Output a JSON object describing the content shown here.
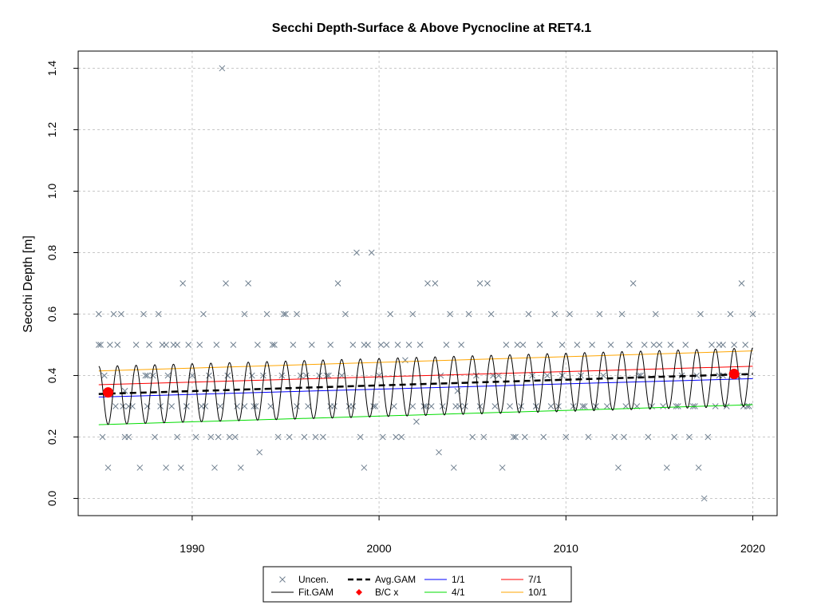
{
  "chart_data": {
    "type": "scatter",
    "title": "Secchi Depth-Surface & Above Pycnocline at RET4.1",
    "xlabel": "",
    "ylabel": "Secchi Depth [m]",
    "xlim": [
      1983.9,
      2021.3
    ],
    "ylim": [
      -0.056,
      1.456
    ],
    "x_ticks": [
      1990,
      2000,
      2010,
      2020
    ],
    "y_ticks": [
      0.0,
      0.2,
      0.4,
      0.6,
      0.8,
      1.0,
      1.2,
      1.4
    ],
    "grid": true,
    "legend_position": "bottom",
    "legend": [
      {
        "label": "Uncen.",
        "kind": "x-marker",
        "color": "#708090"
      },
      {
        "label": "Fit.GAM",
        "kind": "line",
        "color": "#000000"
      },
      {
        "label": "Avg.GAM",
        "kind": "dashed-line",
        "color": "#000000"
      },
      {
        "label": "B/C x",
        "kind": "diamond-marker",
        "color": "#ff0000"
      },
      {
        "label": "1/1",
        "kind": "line",
        "color": "#0000ff"
      },
      {
        "label": "4/1",
        "kind": "line",
        "color": "#00dd00"
      },
      {
        "label": "7/1",
        "kind": "line",
        "color": "#ff0000"
      },
      {
        "label": "10/1",
        "kind": "line",
        "color": "#ffa500"
      }
    ],
    "seasonal_lines": [
      {
        "name": "1/1",
        "color": "#0000ff",
        "x": [
          1985.0,
          2020.0
        ],
        "y": [
          0.33,
          0.39
        ]
      },
      {
        "name": "4/1",
        "color": "#00dd00",
        "x": [
          1985.0,
          2020.0
        ],
        "y": [
          0.24,
          0.305
        ]
      },
      {
        "name": "7/1",
        "color": "#ff0000",
        "x": [
          1985.0,
          2020.0
        ],
        "y": [
          0.37,
          0.43
        ]
      },
      {
        "name": "10/1",
        "color": "#ffa500",
        "x": [
          1985.0,
          2020.0
        ],
        "y": [
          0.415,
          0.48
        ]
      }
    ],
    "avg_gam": {
      "name": "Avg.GAM",
      "x": [
        1985.0,
        2020.0
      ],
      "y": [
        0.34,
        0.405
      ]
    },
    "fit_gam": {
      "name": "Fit.GAM",
      "x_start": 1985.0,
      "x_end": 2020.0,
      "period_years": 1.0,
      "mean_start": 0.335,
      "mean_end": 0.395,
      "amplitude": 0.095
    },
    "bc_points": {
      "name": "B/C x",
      "color": "#ff0000",
      "x": [
        1985.5,
        2019.0
      ],
      "y": [
        0.345,
        0.405
      ]
    },
    "uncensored": {
      "name": "Uncen.",
      "color": "#708090",
      "x": [
        1985.0,
        1985.1,
        1985.2,
        1985.3,
        1985.5,
        1985.6,
        1985.8,
        1985.9,
        1986.0,
        1986.2,
        1986.3,
        1986.4,
        1986.6,
        1986.8,
        1987.0,
        1987.2,
        1987.4,
        1987.6,
        1987.7,
        1987.9,
        1988.0,
        1988.2,
        1988.3,
        1988.4,
        1988.6,
        1988.7,
        1988.9,
        1989.0,
        1989.2,
        1989.4,
        1989.5,
        1989.7,
        1989.8,
        1990.0,
        1990.2,
        1990.4,
        1990.6,
        1990.7,
        1990.9,
        1991.0,
        1991.2,
        1991.3,
        1991.5,
        1991.6,
        1991.8,
        1991.9,
        1992.0,
        1992.2,
        1992.4,
        1992.6,
        1992.8,
        1993.0,
        1993.2,
        1993.3,
        1993.5,
        1993.6,
        1993.8,
        1994.0,
        1994.2,
        1994.4,
        1994.6,
        1994.8,
        1995.0,
        1995.2,
        1995.4,
        1995.6,
        1995.8,
        1996.0,
        1996.2,
        1996.4,
        1996.6,
        1996.8,
        1997.0,
        1997.2,
        1997.4,
        1997.6,
        1997.8,
        1998.0,
        1998.2,
        1998.4,
        1998.6,
        1998.8,
        1999.0,
        1999.2,
        1999.4,
        1999.6,
        1999.8,
        2000.0,
        2000.2,
        2000.4,
        2000.6,
        2000.8,
        2001.0,
        2001.2,
        2001.4,
        2001.6,
        2001.8,
        2002.0,
        2002.2,
        2002.4,
        2002.6,
        2002.8,
        2003.0,
        2003.2,
        2003.4,
        2003.6,
        2003.8,
        2004.0,
        2004.2,
        2004.4,
        2004.6,
        2004.8,
        2005.0,
        2005.2,
        2005.4,
        2005.6,
        2005.8,
        2006.0,
        2006.2,
        2006.4,
        2006.6,
        2006.8,
        2007.0,
        2007.2,
        2007.4,
        2007.6,
        2007.8,
        2008.0,
        2008.2,
        2008.4,
        2008.6,
        2008.8,
        2009.0,
        2009.2,
        2009.4,
        2009.6,
        2009.8,
        2010.0,
        2010.2,
        2010.4,
        2010.6,
        2010.8,
        2011.0,
        2011.2,
        2011.4,
        2011.6,
        2011.8,
        2012.0,
        2012.2,
        2012.4,
        2012.6,
        2012.8,
        2013.0,
        2013.2,
        2013.4,
        2013.6,
        2013.8,
        2014.0,
        2014.2,
        2014.4,
        2014.6,
        2014.8,
        2015.0,
        2015.2,
        2015.4,
        2015.6,
        2015.8,
        2016.0,
        2016.2,
        2016.4,
        2016.6,
        2016.8,
        2017.0,
        2017.2,
        2017.4,
        2017.6,
        2017.8,
        2018.0,
        2018.2,
        2018.4,
        2018.6,
        2018.8,
        2019.0,
        2019.2,
        2019.4,
        2019.6,
        2019.8,
        2020.0,
        1986.4,
        1987.5,
        1989.2,
        1989.7,
        1991.4,
        1992.3,
        1992.8,
        1994.9,
        1995.6,
        1997.3,
        1998.6,
        1999.7,
        2000.1,
        2000.9,
        2002.5,
        2004.1,
        2004.3,
        2006.1,
        2007.3,
        2008.4,
        2010.9,
        2013.1,
        2014.7,
        2016.9,
        2017.1,
        2018.4,
        2019.7,
        1985.0,
        1986.6,
        1987.6,
        1988.6,
        1990.5,
        1991.9,
        1993.4,
        1994.3,
        1996.1,
        1997.4,
        1999.2,
        2001.8,
        2003.3,
        2005.4,
        2007.7,
        2009.8,
        2011.6,
        2013.9,
        2015.9,
        2018.2,
        2019.5
      ],
      "y": [
        0.6,
        0.5,
        0.2,
        0.4,
        0.1,
        0.5,
        0.6,
        0.3,
        0.5,
        0.6,
        0.3,
        0.35,
        0.2,
        0.3,
        0.5,
        0.1,
        0.6,
        0.3,
        0.5,
        0.4,
        0.2,
        0.6,
        0.3,
        0.5,
        0.1,
        0.4,
        0.3,
        0.5,
        0.2,
        0.1,
        0.7,
        0.3,
        0.5,
        0.4,
        0.2,
        0.5,
        0.6,
        0.3,
        0.4,
        0.2,
        0.1,
        0.5,
        0.3,
        1.4,
        0.7,
        0.4,
        0.2,
        0.5,
        0.3,
        0.1,
        0.6,
        0.7,
        0.4,
        0.3,
        0.5,
        0.15,
        0.4,
        0.6,
        0.3,
        0.5,
        0.2,
        0.4,
        0.6,
        0.2,
        0.5,
        0.3,
        0.4,
        0.2,
        0.3,
        0.5,
        0.2,
        0.4,
        0.2,
        0.4,
        0.5,
        0.3,
        0.7,
        0.4,
        0.6,
        0.3,
        0.5,
        0.8,
        0.2,
        0.1,
        0.5,
        0.8,
        0.3,
        0.4,
        0.2,
        0.5,
        0.6,
        0.3,
        0.5,
        0.2,
        0.45,
        0.5,
        0.6,
        0.25,
        0.5,
        0.3,
        0.7,
        0.3,
        0.7,
        0.15,
        0.3,
        0.5,
        0.6,
        0.1,
        0.35,
        0.5,
        0.3,
        0.6,
        0.2,
        0.4,
        0.7,
        0.2,
        0.7,
        0.6,
        0.3,
        0.4,
        0.1,
        0.5,
        0.3,
        0.2,
        0.5,
        0.3,
        0.2,
        0.6,
        0.4,
        0.3,
        0.5,
        0.2,
        0.4,
        0.3,
        0.6,
        0.3,
        0.5,
        0.2,
        0.6,
        0.3,
        0.5,
        0.4,
        0.3,
        0.2,
        0.5,
        0.3,
        0.6,
        0.4,
        0.3,
        0.5,
        0.2,
        0.1,
        0.6,
        0.3,
        0.5,
        0.7,
        0.3,
        0.4,
        0.5,
        0.2,
        0.3,
        0.6,
        0.5,
        0.3,
        0.1,
        0.5,
        0.2,
        0.3,
        0.4,
        0.5,
        0.2,
        0.3,
        0.4,
        0.6,
        0.0,
        0.2,
        0.5,
        0.3,
        0.4,
        0.5,
        0.3,
        0.6,
        0.5,
        0.4,
        0.7,
        0.5,
        0.3,
        0.6,
        0.2,
        0.4,
        0.5,
        0.3,
        0.2,
        0.2,
        0.3,
        0.6,
        0.6,
        0.4,
        0.3,
        0.3,
        0.5,
        0.2,
        0.3,
        0.3,
        0.3,
        0.4,
        0.2,
        0.3,
        0.3,
        0.2,
        0.5,
        0.3,
        0.1,
        0.4,
        0.3,
        0.5,
        0.3,
        0.4,
        0.5,
        0.3,
        0.4,
        0.3,
        0.5,
        0.4,
        0.3,
        0.5,
        0.3,
        0.4,
        0.3,
        0.5,
        0.4,
        0.3,
        0.4,
        0.3,
        0.5,
        0.3
      ]
    }
  }
}
